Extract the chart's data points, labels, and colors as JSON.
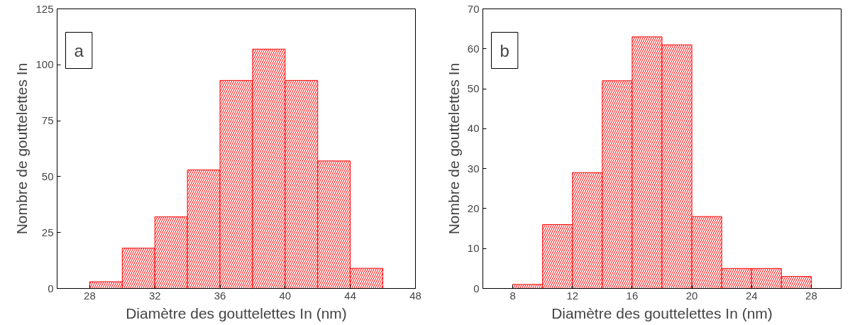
{
  "chart_data": [
    {
      "type": "histogram",
      "xlabel": "Diamètre des gouttelettes In (nm)",
      "ylabel": "Nombre de gouttelettes In",
      "annotations": [
        "a"
      ],
      "bins": [
        28,
        30,
        32,
        34,
        36,
        38,
        40,
        42,
        44,
        46
      ],
      "values": [
        3,
        18,
        32,
        53,
        93,
        107,
        93,
        57,
        9
      ],
      "color": "#ff0000",
      "xlim": [
        26,
        48
      ],
      "xticks": [
        28,
        32,
        36,
        40,
        44,
        48
      ],
      "ylim": [
        0,
        125
      ],
      "yticks": [
        0,
        25,
        50,
        75,
        100,
        125
      ],
      "grid": false
    },
    {
      "type": "histogram",
      "xlabel": "Diamètre des gouttelettes In (nm)",
      "ylabel": "Nombre de gouttelettes In",
      "annotations": [
        "b"
      ],
      "bins": [
        8,
        10,
        12,
        14,
        16,
        18,
        20,
        22,
        24,
        26,
        28
      ],
      "values": [
        1,
        16,
        29,
        52,
        63,
        61,
        18,
        5,
        5,
        3
      ],
      "color": "#ff0000",
      "xlim": [
        6,
        30
      ],
      "xticks": [
        8,
        12,
        16,
        20,
        24,
        28
      ],
      "ylim": [
        0,
        70
      ],
      "yticks": [
        0,
        10,
        20,
        30,
        40,
        50,
        60,
        70
      ],
      "grid": false
    }
  ]
}
